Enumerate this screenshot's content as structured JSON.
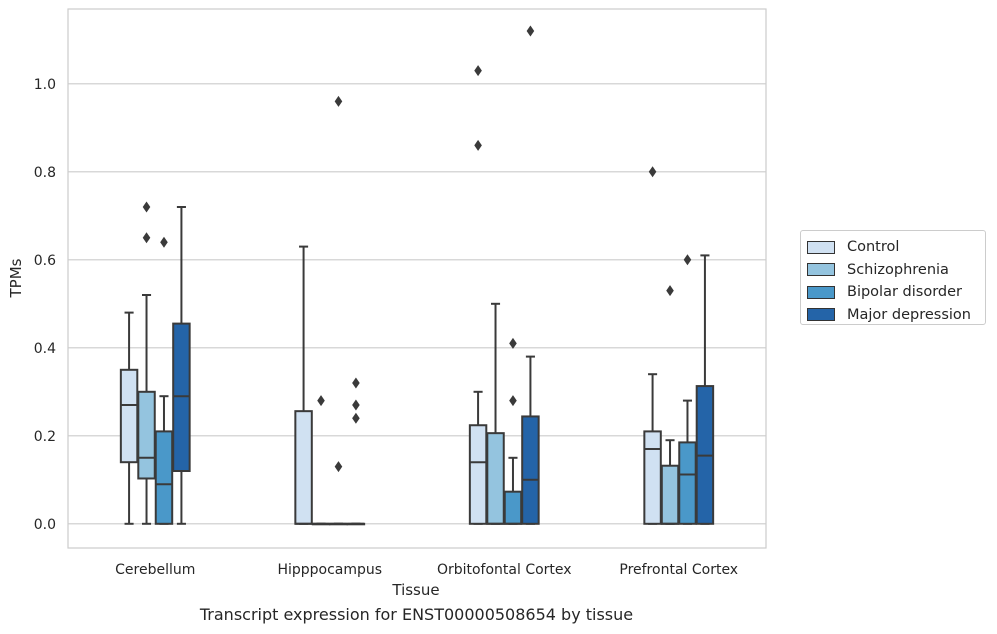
{
  "caption": "Transcript expression for ENST00000508654 by tissue",
  "chart_data": {
    "type": "box",
    "title": "",
    "xlabel": "Tissue",
    "ylabel": "TPMs",
    "ylim": [
      -0.055,
      1.17
    ],
    "yticks": [
      0.0,
      0.2,
      0.4,
      0.6,
      0.8,
      1.0
    ],
    "ytick_labels": [
      "0.0",
      "0.2",
      "0.4",
      "0.6",
      "0.8",
      "1.0"
    ],
    "grid": "horizontal",
    "legend_position": "right",
    "categories": [
      "Cerebellum",
      "Hipppocampus",
      "Orbitofontal Cortex",
      "Prefrontal Cortex"
    ],
    "series": [
      {
        "name": "Control",
        "color": "#d0e1f2",
        "boxes": [
          {
            "whislo": 0.0,
            "q1": 0.14,
            "med": 0.27,
            "q3": 0.35,
            "whishi": 0.48,
            "fliers": []
          },
          {
            "whislo": 0.0,
            "q1": 0.0,
            "med": 0.0,
            "q3": 0.256,
            "whishi": 0.63,
            "fliers": []
          },
          {
            "whislo": 0.0,
            "q1": 0.0,
            "med": 0.14,
            "q3": 0.224,
            "whishi": 0.3,
            "fliers": [
              0.86,
              1.03
            ]
          },
          {
            "whislo": 0.0,
            "q1": 0.0,
            "med": 0.17,
            "q3": 0.21,
            "whishi": 0.34,
            "fliers": [
              0.8
            ]
          }
        ]
      },
      {
        "name": "Schizophrenia",
        "color": "#94c4df",
        "boxes": [
          {
            "whislo": 0.0,
            "q1": 0.103,
            "med": 0.15,
            "q3": 0.3,
            "whishi": 0.52,
            "fliers": [
              0.65,
              0.72
            ]
          },
          {
            "whislo": 0.0,
            "q1": 0.0,
            "med": 0.0,
            "q3": 0.0,
            "whishi": 0.0,
            "fliers": [
              0.28
            ]
          },
          {
            "whislo": 0.0,
            "q1": 0.0,
            "med": 0.0,
            "q3": 0.206,
            "whishi": 0.5,
            "fliers": []
          },
          {
            "whislo": 0.0,
            "q1": 0.0,
            "med": 0.0,
            "q3": 0.132,
            "whishi": 0.19,
            "fliers": [
              0.53
            ]
          }
        ]
      },
      {
        "name": "Bipolar disorder",
        "color": "#4a98c9",
        "boxes": [
          {
            "whislo": 0.0,
            "q1": 0.0,
            "med": 0.09,
            "q3": 0.21,
            "whishi": 0.29,
            "fliers": [
              0.64
            ]
          },
          {
            "whislo": 0.0,
            "q1": 0.0,
            "med": 0.0,
            "q3": 0.0,
            "whishi": 0.0,
            "fliers": [
              0.13,
              0.96
            ]
          },
          {
            "whislo": 0.0,
            "q1": 0.0,
            "med": 0.0,
            "q3": 0.073,
            "whishi": 0.15,
            "fliers": [
              0.28,
              0.41
            ]
          },
          {
            "whislo": 0.0,
            "q1": 0.0,
            "med": 0.112,
            "q3": 0.185,
            "whishi": 0.28,
            "fliers": [
              0.6
            ]
          }
        ]
      },
      {
        "name": "Major depression",
        "color": "#2464a8",
        "boxes": [
          {
            "whislo": 0.0,
            "q1": 0.12,
            "med": 0.29,
            "q3": 0.455,
            "whishi": 0.72,
            "fliers": []
          },
          {
            "whislo": 0.0,
            "q1": 0.0,
            "med": 0.0,
            "q3": 0.0,
            "whishi": 0.0,
            "fliers": [
              0.24,
              0.27,
              0.32
            ]
          },
          {
            "whislo": 0.0,
            "q1": 0.0,
            "med": 0.1,
            "q3": 0.244,
            "whishi": 0.38,
            "fliers": [
              1.12
            ]
          },
          {
            "whislo": 0.0,
            "q1": 0.0,
            "med": 0.155,
            "q3": 0.313,
            "whishi": 0.61,
            "fliers": []
          }
        ]
      }
    ]
  }
}
